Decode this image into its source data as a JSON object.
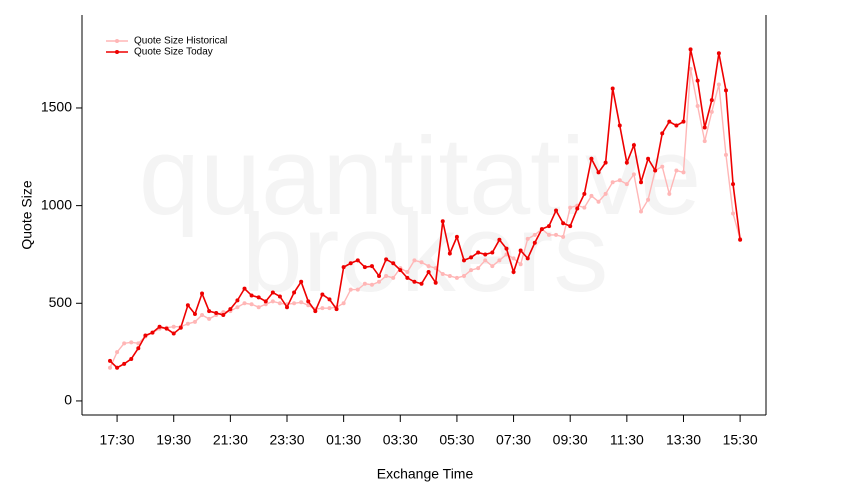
{
  "chart_data": {
    "type": "line",
    "x_label": "Exchange Time",
    "y_label": "Quote Size",
    "watermark": [
      "quantitative",
      "brokers"
    ],
    "legend": "top-left",
    "categories": [
      null,
      "17:30",
      null,
      null,
      null,
      null,
      null,
      null,
      null,
      "19:30",
      null,
      null,
      null,
      null,
      null,
      null,
      null,
      "21:30",
      null,
      null,
      null,
      null,
      null,
      null,
      null,
      "23:30",
      null,
      null,
      null,
      null,
      null,
      null,
      null,
      "01:30",
      null,
      null,
      null,
      null,
      null,
      null,
      null,
      "03:30",
      null,
      null,
      null,
      null,
      null,
      null,
      null,
      "05:30",
      null,
      null,
      null,
      null,
      null,
      null,
      null,
      "07:30",
      null,
      null,
      null,
      null,
      null,
      null,
      null,
      "09:30",
      null,
      null,
      null,
      null,
      null,
      null,
      null,
      "11:30",
      null,
      null,
      null,
      null,
      null,
      null,
      null,
      "13:30",
      null,
      null,
      null,
      null,
      null,
      null,
      null,
      "15:30"
    ],
    "ylim": [
      -72,
      1976
    ],
    "yticks": [
      0,
      500,
      1000,
      1500
    ],
    "series": [
      {
        "name": "Quote Size Historical",
        "color": "#ffb6b6",
        "values": [
          170,
          250,
          295,
          300,
          295,
          330,
          350,
          370,
          375,
          380,
          380,
          395,
          405,
          440,
          420,
          440,
          455,
          460,
          480,
          500,
          495,
          480,
          495,
          510,
          500,
          495,
          500,
          505,
          490,
          470,
          475,
          475,
          480,
          500,
          570,
          570,
          600,
          595,
          610,
          640,
          630,
          680,
          660,
          720,
          710,
          690,
          680,
          650,
          640,
          630,
          640,
          670,
          680,
          720,
          690,
          720,
          750,
          730,
          700,
          830,
          850,
          880,
          850,
          850,
          840,
          990,
          1000,
          990,
          1050,
          1020,
          1060,
          1120,
          1130,
          1110,
          1160,
          970,
          1030,
          1180,
          1200,
          1060,
          1180,
          1170,
          1700,
          1510,
          1330,
          1480,
          1620,
          1260,
          960,
          830
        ]
      },
      {
        "name": "Quote Size Today",
        "color": "#ee0000",
        "values": [
          205,
          170,
          190,
          215,
          270,
          335,
          350,
          380,
          370,
          345,
          375,
          490,
          445,
          550,
          460,
          450,
          440,
          470,
          515,
          575,
          540,
          530,
          510,
          555,
          535,
          480,
          555,
          610,
          510,
          460,
          545,
          520,
          470,
          685,
          705,
          720,
          685,
          690,
          640,
          725,
          705,
          670,
          630,
          610,
          600,
          660,
          605,
          920,
          755,
          840,
          720,
          735,
          760,
          750,
          760,
          825,
          780,
          660,
          770,
          730,
          810,
          880,
          895,
          975,
          910,
          895,
          985,
          1060,
          1240,
          1170,
          1220,
          1600,
          1410,
          1220,
          1310,
          1120,
          1240,
          1180,
          1370,
          1430,
          1410,
          1430,
          1800,
          1640,
          1400,
          1540,
          1780,
          1590,
          1110,
          825
        ]
      }
    ]
  }
}
